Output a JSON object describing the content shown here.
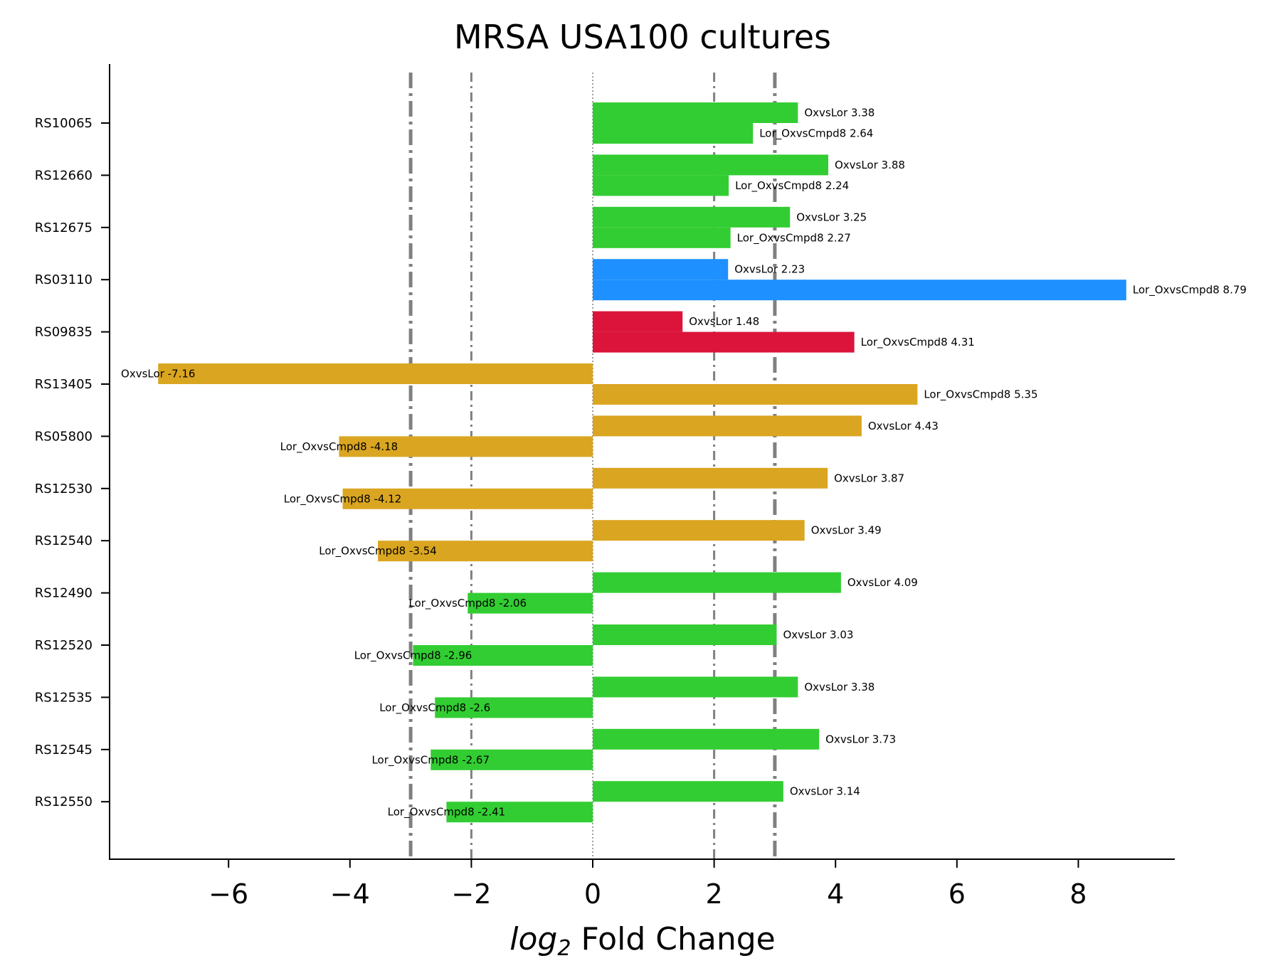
{
  "chart_data": {
    "type": "bar",
    "orientation": "horizontal",
    "title": "MRSA USA100 cultures",
    "xlabel_italic": "log",
    "xlabel_sub": "2",
    "xlabel_rest": " Fold Change",
    "ylabel": "",
    "xlim": [
      -7.96,
      9.59
    ],
    "xticks": [
      -6,
      -4,
      -2,
      0,
      2,
      4,
      6,
      8
    ],
    "xtick_labels": [
      "−6",
      "−4",
      "−2",
      "0",
      "2",
      "4",
      "6",
      "8"
    ],
    "categories": [
      "RS10065",
      "RS12660",
      "RS12675",
      "RS03110",
      "RS09835",
      "RS13405",
      "RS05800",
      "RS12530",
      "RS12540",
      "RS12490",
      "RS12520",
      "RS12535",
      "RS12545",
      "RS12550"
    ],
    "colors": [
      "#32cd32",
      "#32cd32",
      "#32cd32",
      "#1e90ff",
      "#dc143c",
      "#daa520",
      "#daa520",
      "#daa520",
      "#daa520",
      "#32cd32",
      "#32cd32",
      "#32cd32",
      "#32cd32",
      "#32cd32"
    ],
    "series": [
      {
        "name": "OxvsLor",
        "values": [
          3.38,
          3.88,
          3.25,
          2.23,
          1.48,
          -7.16,
          4.43,
          3.87,
          3.49,
          4.09,
          3.03,
          3.38,
          3.73,
          3.14
        ]
      },
      {
        "name": "Lor_OxvsCmpd8",
        "values": [
          2.64,
          2.24,
          2.27,
          8.79,
          4.31,
          5.35,
          -4.18,
          -4.12,
          -3.54,
          -2.06,
          -2.96,
          -2.6,
          -2.67,
          -2.41
        ]
      }
    ],
    "reference_lines": [
      {
        "x": -3,
        "style": "thick-dashdot"
      },
      {
        "x": -2,
        "style": "thin-dashdot"
      },
      {
        "x": 0,
        "style": "dotted"
      },
      {
        "x": 2,
        "style": "thin-dashdot"
      },
      {
        "x": 3,
        "style": "thick-dashdot"
      }
    ],
    "line_color": "#808080",
    "grid": false,
    "legend": "none"
  }
}
